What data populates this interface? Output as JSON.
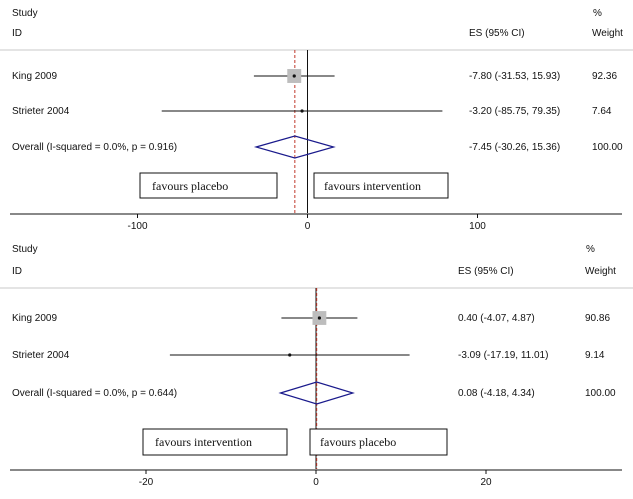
{
  "chart_data": [
    {
      "type": "forest",
      "header": {
        "study": "Study",
        "id": "ID",
        "es_label": "ES (95% CI)",
        "pct": "%",
        "weight": "Weight"
      },
      "rows": [
        {
          "label": "King 2009",
          "es": -7.8,
          "lo": -31.53,
          "hi": 15.93,
          "es_text": "-7.80 (-31.53, 15.93)",
          "weight": 92.36,
          "weight_text": "92.36",
          "kind": "study"
        },
        {
          "label": "Strieter 2004",
          "es": -3.2,
          "lo": -85.75,
          "hi": 79.35,
          "es_text": "-3.20 (-85.75, 79.35)",
          "weight": 7.64,
          "weight_text": "7.64",
          "kind": "study"
        },
        {
          "label": "Overall  (I-squared = 0.0%, p = 0.916)",
          "es": -7.45,
          "lo": -30.26,
          "hi": 15.36,
          "es_text": "-7.45 (-30.26, 15.36)",
          "weight": 100,
          "weight_text": "100.00",
          "kind": "overall"
        }
      ],
      "favours_left": "favours placebo",
      "favours_right": "favours intervention",
      "xlim": [
        -175,
        185
      ],
      "ticks": [
        -100,
        0,
        100
      ],
      "tick_labels": [
        "-100",
        "0",
        "100"
      ]
    },
    {
      "type": "forest",
      "header": {
        "study": "Study",
        "id": "ID",
        "es_label": "ES (95% CI)",
        "pct": "%",
        "weight": "Weight"
      },
      "rows": [
        {
          "label": "King 2009",
          "es": 0.4,
          "lo": -4.07,
          "hi": 4.87,
          "es_text": "0.40 (-4.07, 4.87)",
          "weight": 90.86,
          "weight_text": "90.86",
          "kind": "study"
        },
        {
          "label": "Strieter 2004",
          "es": -3.09,
          "lo": -17.19,
          "hi": 11.01,
          "es_text": "-3.09 (-17.19, 11.01)",
          "weight": 9.14,
          "weight_text": "9.14",
          "kind": "study"
        },
        {
          "label": "Overall  (I-squared = 0.0%, p = 0.644)",
          "es": 0.08,
          "lo": -4.18,
          "hi": 4.34,
          "es_text": "0.08 (-4.18, 4.34)",
          "weight": 100,
          "weight_text": "100.00",
          "kind": "overall"
        }
      ],
      "favours_left": "favours intervention",
      "favours_right": "favours placebo",
      "xlim": [
        -36,
        36
      ],
      "ticks": [
        -20,
        0,
        20
      ],
      "tick_labels": [
        "-20",
        "0",
        "20"
      ]
    }
  ],
  "colors": {
    "ci_line": "#111111",
    "square": "#bdbdbd",
    "diamond": "#1a1a8c",
    "null_line": "#111111",
    "overall_line": "#c0392b",
    "separator": "#c8c8c8"
  }
}
